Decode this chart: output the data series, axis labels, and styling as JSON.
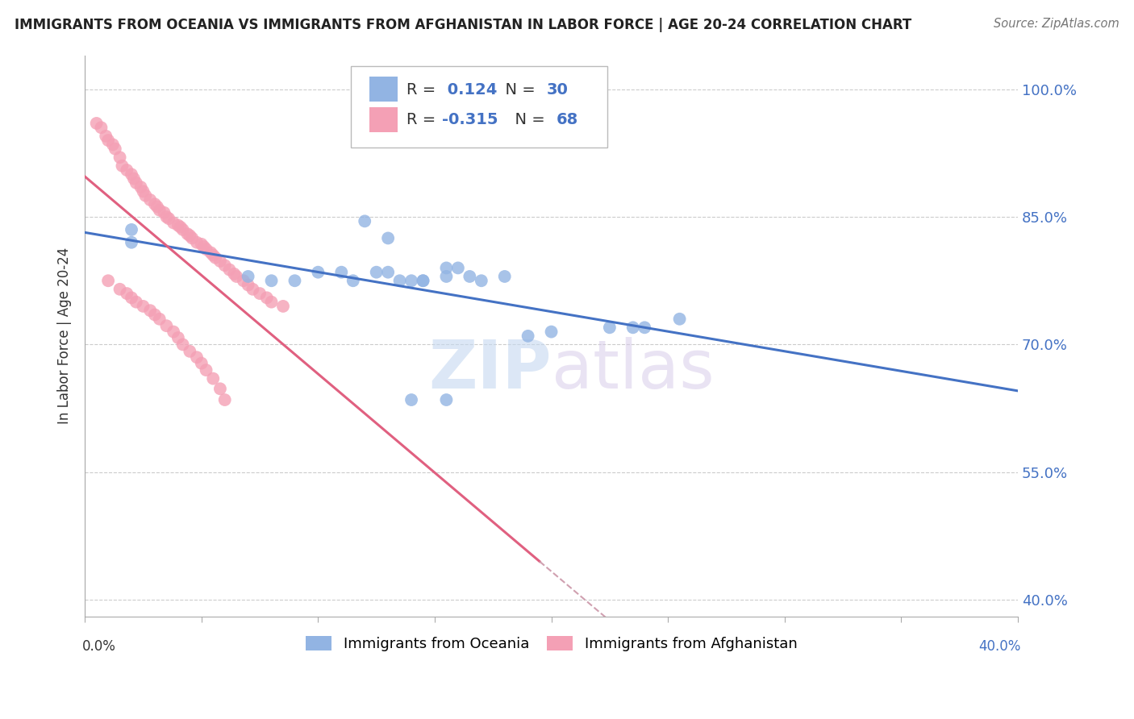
{
  "title": "IMMIGRANTS FROM OCEANIA VS IMMIGRANTS FROM AFGHANISTAN IN LABOR FORCE | AGE 20-24 CORRELATION CHART",
  "source": "Source: ZipAtlas.com",
  "ylabel": "In Labor Force | Age 20-24",
  "xlim": [
    0.0,
    0.4
  ],
  "ylim": [
    0.38,
    1.04
  ],
  "yticks": [
    0.4,
    0.55,
    0.7,
    0.85,
    1.0
  ],
  "ytick_labels": [
    "40.0%",
    "55.0%",
    "70.0%",
    "85.0%",
    "100.0%"
  ],
  "xtick_left_label": "0.0%",
  "xtick_right_label": "40.0%",
  "R_oceania": 0.124,
  "N_oceania": 30,
  "R_afghanistan": -0.315,
  "N_afghanistan": 68,
  "color_oceania": "#92b4e3",
  "color_afghanistan": "#f4a0b5",
  "trend_color_oceania": "#4472c4",
  "trend_color_afghanistan": "#e06080",
  "trend_color_dashed": "#d0a0b0",
  "watermark_top": "ZIP",
  "watermark_bottom": "atlas",
  "scatter_oceania_x": [
    0.02,
    0.02,
    0.12,
    0.13,
    0.16,
    0.14,
    0.11,
    0.13,
    0.145,
    0.155,
    0.17,
    0.155,
    0.145,
    0.135,
    0.125,
    0.115,
    0.1,
    0.09,
    0.08,
    0.07,
    0.165,
    0.18,
    0.19,
    0.2,
    0.225,
    0.14,
    0.155,
    0.235,
    0.24,
    0.255
  ],
  "scatter_oceania_y": [
    0.835,
    0.82,
    0.845,
    0.825,
    0.79,
    0.775,
    0.785,
    0.785,
    0.775,
    0.78,
    0.775,
    0.79,
    0.775,
    0.775,
    0.785,
    0.775,
    0.785,
    0.775,
    0.775,
    0.78,
    0.78,
    0.78,
    0.71,
    0.715,
    0.72,
    0.635,
    0.635,
    0.72,
    0.72,
    0.73
  ],
  "scatter_afghanistan_x": [
    0.005,
    0.007,
    0.009,
    0.01,
    0.012,
    0.013,
    0.015,
    0.016,
    0.018,
    0.02,
    0.021,
    0.022,
    0.024,
    0.025,
    0.026,
    0.028,
    0.03,
    0.031,
    0.032,
    0.034,
    0.035,
    0.036,
    0.038,
    0.04,
    0.041,
    0.042,
    0.044,
    0.045,
    0.046,
    0.048,
    0.05,
    0.051,
    0.052,
    0.054,
    0.055,
    0.056,
    0.058,
    0.06,
    0.062,
    0.064,
    0.065,
    0.068,
    0.07,
    0.072,
    0.075,
    0.078,
    0.08,
    0.085,
    0.01,
    0.015,
    0.018,
    0.02,
    0.022,
    0.025,
    0.028,
    0.03,
    0.032,
    0.035,
    0.038,
    0.04,
    0.042,
    0.045,
    0.048,
    0.05,
    0.052,
    0.055,
    0.058,
    0.06
  ],
  "scatter_afghanistan_y": [
    0.96,
    0.955,
    0.945,
    0.94,
    0.935,
    0.93,
    0.92,
    0.91,
    0.905,
    0.9,
    0.895,
    0.89,
    0.885,
    0.88,
    0.875,
    0.87,
    0.865,
    0.862,
    0.858,
    0.855,
    0.85,
    0.848,
    0.843,
    0.84,
    0.838,
    0.835,
    0.83,
    0.828,
    0.825,
    0.82,
    0.818,
    0.815,
    0.812,
    0.808,
    0.805,
    0.802,
    0.798,
    0.793,
    0.788,
    0.783,
    0.78,
    0.775,
    0.77,
    0.765,
    0.76,
    0.755,
    0.75,
    0.745,
    0.775,
    0.765,
    0.76,
    0.755,
    0.75,
    0.745,
    0.74,
    0.735,
    0.73,
    0.722,
    0.715,
    0.708,
    0.7,
    0.692,
    0.685,
    0.678,
    0.67,
    0.66,
    0.648,
    0.635
  ]
}
